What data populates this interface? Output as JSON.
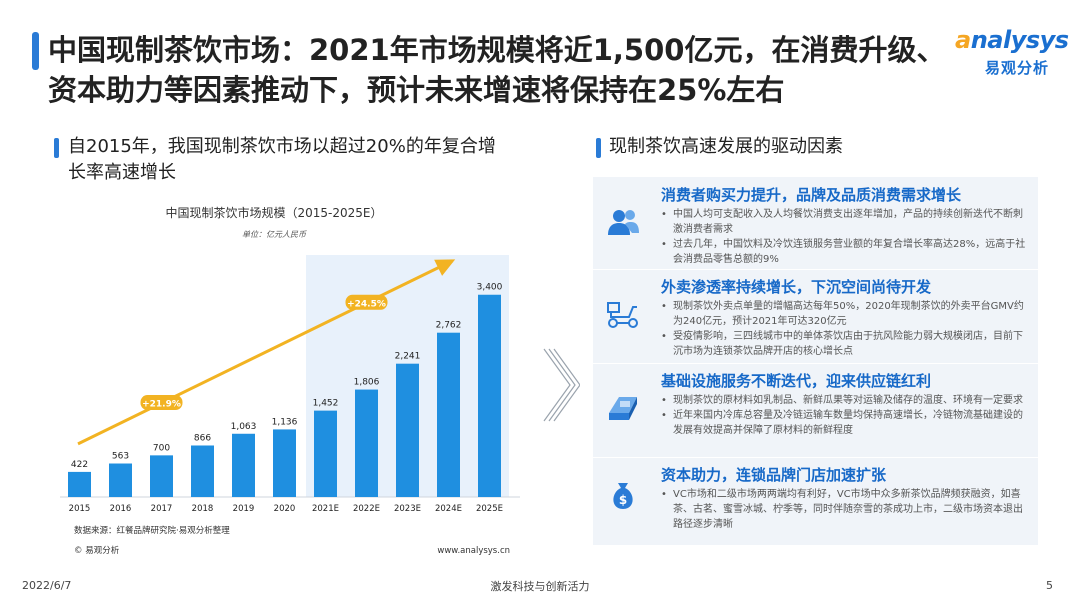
{
  "title": "中国现制茶饮市场：2021年市场规模将近1,500亿元，在消费升级、资本助力等因素推动下，预计未来增速将保持在25%左右",
  "logo": {
    "en_prefix": "a",
    "en_rest": "nalysys",
    "cn": "易观分析"
  },
  "left_heading": "自2015年，我国现制茶饮市场以超过20%的年复合增长率高速增长",
  "right_heading": "现制茶饮高速发展的驱动因素",
  "chart_data": {
    "type": "bar",
    "title": "中国现制茶饮市场规模（2015-2025E）",
    "unit": "单位：亿元人民币",
    "categories": [
      "2015",
      "2016",
      "2017",
      "2018",
      "2019",
      "2020",
      "2021E",
      "2022E",
      "2023E",
      "2024E",
      "2025E"
    ],
    "values": [
      422,
      563,
      700,
      866,
      1063,
      1136,
      1452,
      1806,
      2241,
      2762,
      3400
    ],
    "value_labels": [
      "422",
      "563",
      "700",
      "866",
      "1,063",
      "1,136",
      "1,452",
      "1,806",
      "2,241",
      "2,762",
      "3,400"
    ],
    "ylim": [
      0,
      3900
    ],
    "growth_annotations": [
      {
        "label": "+21.9%",
        "category": "2017"
      },
      {
        "label": "+24.5%",
        "category": "2022E"
      }
    ],
    "source": "数据来源：红餐品牌研究院·易观分析整理",
    "copyright": "© 易观分析",
    "website": "www.analysys.cn",
    "colors": {
      "bar": "#1f8fe0",
      "trend": "#f2b322",
      "label_bg": "#f2b322"
    }
  },
  "factors": [
    {
      "icon": "consumer-icon",
      "title": "消费者购买力提升，品牌及品质消费需求增长",
      "bullets": [
        "中国人均可支配收入及人均餐饮消费支出逐年增加，产品的持续创新迭代不断刺激消费者需求",
        "过去几年，中国饮料及冷饮连锁服务营业额的年复合增长率高达28%，远高于社会消费品零售总额的9%"
      ]
    },
    {
      "icon": "delivery-scooter-icon",
      "title": "外卖渗透率持续增长，下沉空间尚待开发",
      "bullets": [
        "现制茶饮外卖点单量的增幅高达每年50%，2020年现制茶饮的外卖平台GMV约为240亿元，预计2021年可达320亿元",
        "受疫情影响，三四线城市中的单体茶饮店由于抗风险能力弱大规模闭店，目前下沉市场为连锁茶饮品牌开店的核心增长点"
      ]
    },
    {
      "icon": "infrastructure-icon",
      "title": "基础设施服务不断迭代，迎来供应链红利",
      "bullets": [
        "现制茶饮的原材料如乳制品、新鲜瓜果等对运输及储存的温度、环境有一定要求",
        "近年来国内冷库总容量及冷链运输车数量均保持高速增长，冷链物流基础建设的发展有效提高并保障了原材料的新鲜程度"
      ]
    },
    {
      "icon": "money-bag-icon",
      "title": "资本助力，连锁品牌门店加速扩张",
      "bullets": [
        "VC市场和二级市场两两端均有利好，VC市场中众多新茶饮品牌频获融资，如喜茶、古茗、蜜雪冰城、柠季等，同时伴随奈雪的茶成功上市，二级市场资本退出路径逐步清晰"
      ]
    }
  ],
  "footer": {
    "date": "2022/6/7",
    "slogan": "激发科技与创新活力",
    "page": "5"
  }
}
